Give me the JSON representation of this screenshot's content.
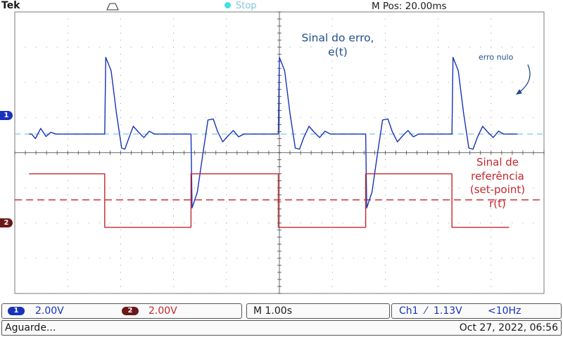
{
  "header": {
    "brand": "Tek",
    "run_state": "Stop",
    "horizontal_position": "M Pos: 20.00ms"
  },
  "markers": {
    "ch1": "1",
    "ch2": "2"
  },
  "annotations": {
    "error_line1": "Sinal do erro,",
    "error_line2": "e(t)",
    "zero_error": "erro nulo",
    "ref_line1": "Sinal de",
    "ref_line2": "referência",
    "ref_line3": "(set-point)",
    "ref_line4": "r(t)"
  },
  "footer": {
    "ch1_label": "1",
    "ch1_scale": "2.00V",
    "ch2_label": "2",
    "ch2_scale": "2.00V",
    "timebase": "M 1.00s",
    "trigger_channel": "Ch1",
    "trigger_slope": "⁄",
    "trigger_level": "1.13V",
    "trigger_freq": "<10Hz",
    "status": "Aguarde...",
    "datetime": "Oct 27, 2022, 06:56"
  },
  "colors": {
    "ch1": "#1833b8",
    "ch2": "#c2272d",
    "reference_line": "#8ec9e6",
    "grid": "#888888"
  },
  "chart_data": {
    "type": "line",
    "title": "",
    "xlabel": "",
    "ylabel": "",
    "grid": true,
    "x_unit": "s",
    "x_range": [
      -4.98,
      5.02
    ],
    "y_unit": "div",
    "y_range": [
      -4,
      4
    ],
    "series": [
      {
        "name": "e(t)",
        "channel": 1,
        "volts_per_div": 2.0,
        "ground_div": 0.53,
        "points": [
          [
            -4.71,
            0.0
          ],
          [
            -4.66,
            0.0
          ],
          [
            -4.59,
            -0.13
          ],
          [
            -4.49,
            0.16
          ],
          [
            -4.39,
            -0.07
          ],
          [
            -4.3,
            0.05
          ],
          [
            -4.2,
            0.0
          ],
          [
            -3.28,
            0.0
          ],
          [
            -3.26,
            2.18
          ],
          [
            -3.16,
            1.8
          ],
          [
            -3.06,
            0.6
          ],
          [
            -2.96,
            -0.4
          ],
          [
            -2.9,
            -0.43
          ],
          [
            -2.82,
            -0.1
          ],
          [
            -2.74,
            0.22
          ],
          [
            -2.64,
            0.05
          ],
          [
            -2.54,
            -0.1
          ],
          [
            -2.44,
            0.08
          ],
          [
            -2.34,
            0.0
          ],
          [
            -1.65,
            0.0
          ],
          [
            -1.63,
            -2.1
          ],
          [
            -1.53,
            -1.65
          ],
          [
            -1.43,
            -0.6
          ],
          [
            -1.33,
            0.4
          ],
          [
            -1.23,
            0.43
          ],
          [
            -1.15,
            0.08
          ],
          [
            -1.05,
            -0.22
          ],
          [
            -0.95,
            -0.05
          ],
          [
            -0.85,
            0.1
          ],
          [
            -0.75,
            -0.08
          ],
          [
            -0.65,
            0.0
          ],
          [
            0.0,
            0.0
          ],
          [
            0.02,
            2.18
          ],
          [
            0.12,
            1.8
          ],
          [
            0.22,
            0.6
          ],
          [
            0.32,
            -0.4
          ],
          [
            0.4,
            -0.43
          ],
          [
            0.48,
            -0.1
          ],
          [
            0.58,
            0.22
          ],
          [
            0.68,
            0.05
          ],
          [
            0.78,
            -0.1
          ],
          [
            0.88,
            0.08
          ],
          [
            0.98,
            0.0
          ],
          [
            1.65,
            0.0
          ],
          [
            1.67,
            -2.1
          ],
          [
            1.77,
            -1.65
          ],
          [
            1.87,
            -0.6
          ],
          [
            1.97,
            0.4
          ],
          [
            2.07,
            0.43
          ],
          [
            2.15,
            0.08
          ],
          [
            2.25,
            -0.22
          ],
          [
            2.35,
            -0.05
          ],
          [
            2.45,
            0.1
          ],
          [
            2.55,
            -0.08
          ],
          [
            2.65,
            0.0
          ],
          [
            3.28,
            0.0
          ],
          [
            3.3,
            2.18
          ],
          [
            3.4,
            1.8
          ],
          [
            3.5,
            0.6
          ],
          [
            3.6,
            -0.4
          ],
          [
            3.68,
            -0.43
          ],
          [
            3.76,
            -0.1
          ],
          [
            3.86,
            0.22
          ],
          [
            3.96,
            0.05
          ],
          [
            4.06,
            -0.1
          ],
          [
            4.16,
            0.08
          ],
          [
            4.26,
            0.0
          ],
          [
            4.52,
            0.0
          ]
        ]
      },
      {
        "name": "r(t)",
        "channel": 2,
        "volts_per_div": 2.0,
        "ground_div": -1.34,
        "points": [
          [
            -4.71,
            0.74
          ],
          [
            -3.28,
            0.74
          ],
          [
            -3.28,
            -0.78
          ],
          [
            -1.65,
            -0.78
          ],
          [
            -1.65,
            0.74
          ],
          [
            0.0,
            0.74
          ],
          [
            0.0,
            -0.78
          ],
          [
            1.65,
            -0.78
          ],
          [
            1.65,
            0.74
          ],
          [
            3.28,
            0.74
          ],
          [
            3.28,
            -0.78
          ],
          [
            4.36,
            -0.78
          ]
        ]
      }
    ],
    "reference_lines": [
      {
        "channel": 1,
        "y_div": 0.53,
        "style": "dashed",
        "label": "erro nulo"
      },
      {
        "channel": 2,
        "y_div": -1.34,
        "style": "dashed"
      }
    ]
  }
}
